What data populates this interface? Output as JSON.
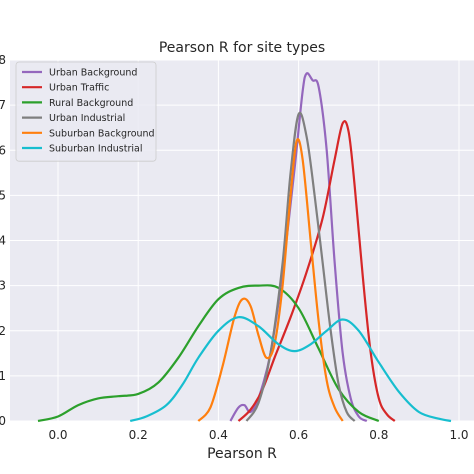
{
  "chart_data": {
    "type": "line",
    "title": "Pearson R for site types",
    "xlabel": "Pearson R",
    "ylabel": "",
    "xlim": [
      -0.1,
      1.02
    ],
    "ylim": [
      0,
      8
    ],
    "x_ticks": [
      "0.0",
      "0.2",
      "0.4",
      "0.6",
      "0.8",
      "1.0"
    ],
    "y_ticks": [
      "0",
      "1",
      "2",
      "3",
      "4",
      "5",
      "6",
      "7",
      "8"
    ],
    "grid": true,
    "legend_position": "top-left",
    "series": [
      {
        "name": "Urban Background",
        "color": "#9467bd",
        "points": [
          [
            0.43,
            0
          ],
          [
            0.45,
            0.3
          ],
          [
            0.465,
            0.35
          ],
          [
            0.48,
            0.2
          ],
          [
            0.5,
            0.5
          ],
          [
            0.53,
            1.5
          ],
          [
            0.56,
            3.3
          ],
          [
            0.59,
            5.6
          ],
          [
            0.61,
            7.3
          ],
          [
            0.62,
            7.7
          ],
          [
            0.635,
            7.55
          ],
          [
            0.65,
            7.4
          ],
          [
            0.67,
            6.0
          ],
          [
            0.69,
            3.5
          ],
          [
            0.71,
            1.5
          ],
          [
            0.73,
            0.5
          ],
          [
            0.75,
            0.1
          ],
          [
            0.77,
            0
          ]
        ]
      },
      {
        "name": "Urban Traffic",
        "color": "#d62728",
        "points": [
          [
            0.45,
            0
          ],
          [
            0.48,
            0.25
          ],
          [
            0.51,
            0.7
          ],
          [
            0.54,
            1.4
          ],
          [
            0.58,
            2.3
          ],
          [
            0.62,
            3.3
          ],
          [
            0.66,
            4.5
          ],
          [
            0.69,
            5.8
          ],
          [
            0.71,
            6.6
          ],
          [
            0.725,
            6.4
          ],
          [
            0.74,
            5.2
          ],
          [
            0.76,
            3.2
          ],
          [
            0.78,
            1.5
          ],
          [
            0.8,
            0.5
          ],
          [
            0.82,
            0.15
          ],
          [
            0.84,
            0
          ]
        ]
      },
      {
        "name": "Rural Background",
        "color": "#2ca02c",
        "points": [
          [
            -0.05,
            0
          ],
          [
            0.0,
            0.1
          ],
          [
            0.05,
            0.35
          ],
          [
            0.1,
            0.5
          ],
          [
            0.15,
            0.55
          ],
          [
            0.2,
            0.6
          ],
          [
            0.25,
            0.85
          ],
          [
            0.3,
            1.4
          ],
          [
            0.35,
            2.1
          ],
          [
            0.4,
            2.7
          ],
          [
            0.45,
            2.95
          ],
          [
            0.5,
            3.0
          ],
          [
            0.55,
            2.95
          ],
          [
            0.6,
            2.5
          ],
          [
            0.65,
            1.6
          ],
          [
            0.7,
            0.7
          ],
          [
            0.75,
            0.2
          ],
          [
            0.8,
            0
          ]
        ]
      },
      {
        "name": "Urban Industrial",
        "color": "#7f7f7f",
        "points": [
          [
            0.47,
            0
          ],
          [
            0.5,
            0.4
          ],
          [
            0.53,
            1.5
          ],
          [
            0.56,
            3.5
          ],
          [
            0.58,
            5.5
          ],
          [
            0.6,
            6.8
          ],
          [
            0.62,
            6.3
          ],
          [
            0.64,
            5.0
          ],
          [
            0.66,
            3.5
          ],
          [
            0.68,
            2.0
          ],
          [
            0.7,
            0.8
          ],
          [
            0.72,
            0.2
          ],
          [
            0.74,
            0
          ]
        ]
      },
      {
        "name": "Suburban Background",
        "color": "#ff7f0e",
        "points": [
          [
            0.35,
            0
          ],
          [
            0.38,
            0.3
          ],
          [
            0.41,
            1.2
          ],
          [
            0.44,
            2.3
          ],
          [
            0.46,
            2.7
          ],
          [
            0.48,
            2.55
          ],
          [
            0.5,
            1.9
          ],
          [
            0.52,
            1.4
          ],
          [
            0.54,
            1.7
          ],
          [
            0.56,
            3.0
          ],
          [
            0.58,
            5.0
          ],
          [
            0.595,
            6.2
          ],
          [
            0.61,
            5.8
          ],
          [
            0.63,
            4.0
          ],
          [
            0.65,
            2.2
          ],
          [
            0.67,
            0.9
          ],
          [
            0.69,
            0.3
          ],
          [
            0.71,
            0
          ]
        ]
      },
      {
        "name": "Suburban Industrial",
        "color": "#17becf",
        "points": [
          [
            0.18,
            0
          ],
          [
            0.22,
            0.1
          ],
          [
            0.27,
            0.35
          ],
          [
            0.31,
            0.8
          ],
          [
            0.35,
            1.4
          ],
          [
            0.4,
            2.0
          ],
          [
            0.45,
            2.3
          ],
          [
            0.5,
            2.1
          ],
          [
            0.55,
            1.7
          ],
          [
            0.59,
            1.55
          ],
          [
            0.63,
            1.7
          ],
          [
            0.67,
            2.0
          ],
          [
            0.71,
            2.25
          ],
          [
            0.75,
            2.0
          ],
          [
            0.8,
            1.3
          ],
          [
            0.85,
            0.65
          ],
          [
            0.9,
            0.2
          ],
          [
            0.95,
            0.05
          ],
          [
            0.98,
            0
          ]
        ]
      }
    ]
  }
}
